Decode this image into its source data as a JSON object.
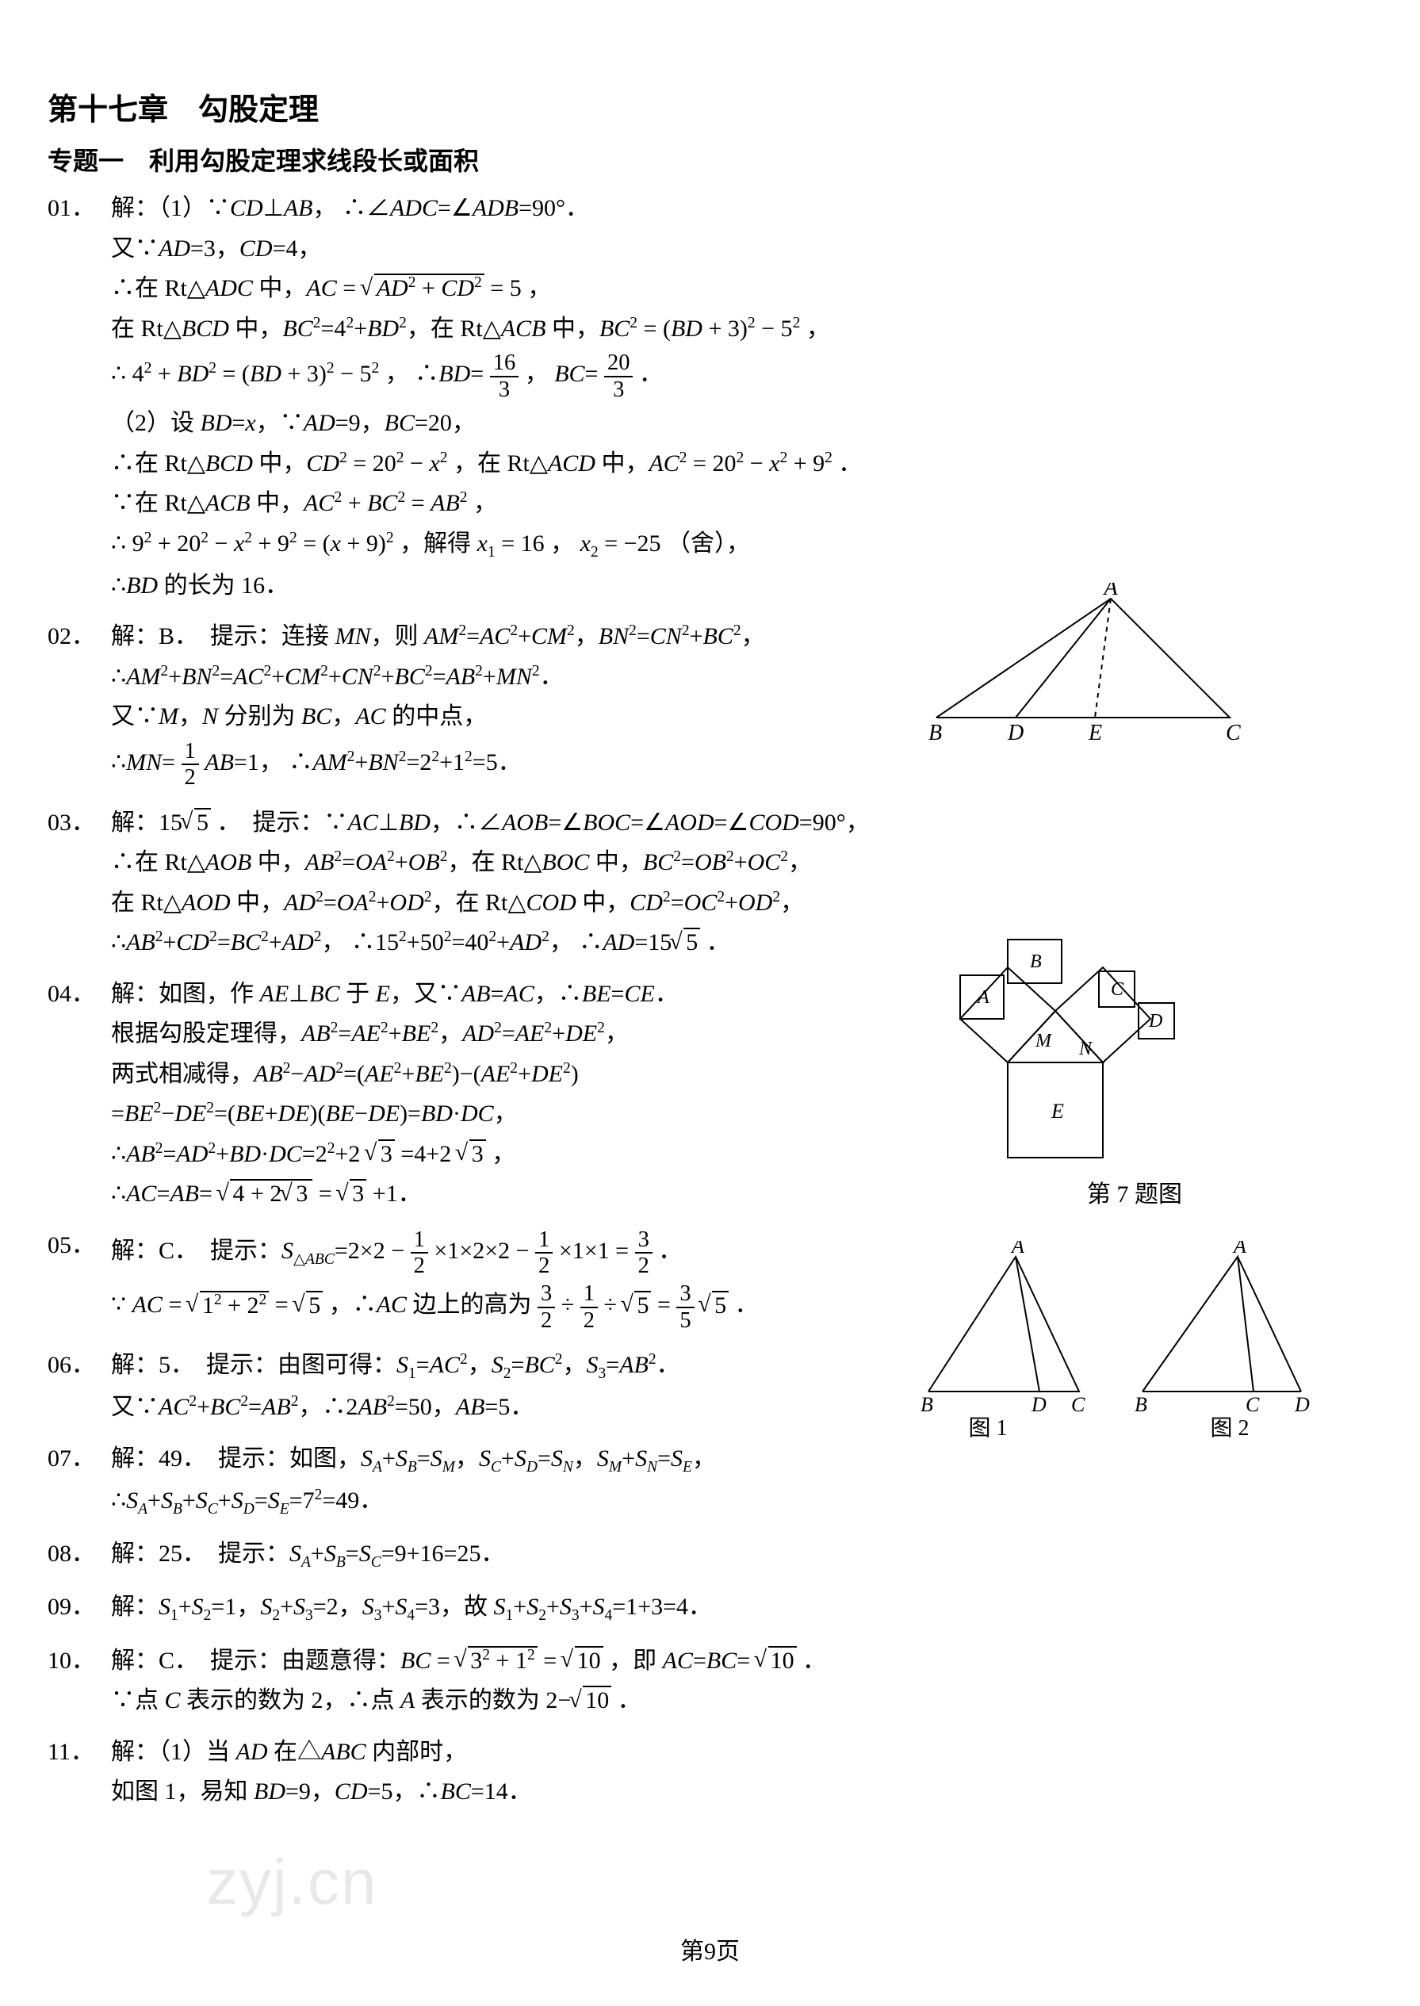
{
  "chapter": "第十七章　勾股定理",
  "topic": "专题一　利用勾股定理求线段长或面积",
  "questions": [
    {
      "num": "01．",
      "lines": [
        "解：（1）∵<span class='it'>CD</span>⊥<span class='it'>AB</span>， ∴∠<span class='it'>ADC</span>=∠<span class='it'>ADB</span>=90°．",
        "又∵<span class='it'>AD</span>=3，<span class='it'>CD</span>=4，",
        "∴在 Rt△<span class='it'>ADC</span> 中，<span class='it'>AC</span> = <span class='sqrt'><span class='rad'><span class='it'>AD</span><sup>2</sup> + <span class='it'>CD</span><sup>2</sup></span></span> = 5 ，",
        "在 Rt△<span class='it'>BCD</span> 中，<span class='it'>BC</span><sup>2</sup>=4<sup>2</sup>+<span class='it'>BD</span><sup>2</sup>，在 Rt△<span class='it'>ACB</span> 中，<span class='it'>BC</span><sup>2</sup> = (<span class='it'>BD</span> + 3)<sup>2</sup> − 5<sup>2</sup> ，",
        "∴ 4<sup>2</sup> + <span class='it'>BD</span><sup>2</sup> = (<span class='it'>BD</span> + 3)<sup>2</sup> − 5<sup>2</sup> ， ∴<span class='it'>BD</span>= <span class='frac'><span class='fn'>16</span><span class='fd'>3</span></span> ， <span class='it'>BC</span>= <span class='frac'><span class='fn'>20</span><span class='fd'>3</span></span> ．",
        "（2）设 <span class='it'>BD</span>=<span class='it'>x</span>，∵<span class='it'>AD</span>=9，<span class='it'>BC</span>=20，",
        "∴在 Rt△<span class='it'>BCD</span> 中，<span class='it'>CD</span><sup>2</sup> = 20<sup>2</sup> − <span class='it'>x</span><sup>2</sup> ，在 Rt△<span class='it'>ACD</span> 中，<span class='it'>AC</span><sup>2</sup> = 20<sup>2</sup> − <span class='it'>x</span><sup>2</sup> + 9<sup>2</sup> ．",
        "∵在 Rt△<span class='it'>ACB</span> 中，<span class='it'>AC</span><sup>2</sup> + <span class='it'>BC</span><sup>2</sup> = <span class='it'>AB</span><sup>2</sup> ，",
        "∴ 9<sup>2</sup> + 20<sup>2</sup> − <span class='it'>x</span><sup>2</sup> + 9<sup>2</sup> = (<span class='it'>x</span> + 9)<sup>2</sup> ，解得 <span class='it'>x</span><sub>1</sub> = 16 ， <span class='it'>x</span><sub>2</sub> = −25 （舍），",
        "∴<span class='it'>BD</span> 的长为 16．"
      ]
    },
    {
      "num": "02．",
      "lines": [
        "解：B．　提示：连接 <span class='it'>MN</span>，则 <span class='it'>AM</span><sup>2</sup>=<span class='it'>AC</span><sup>2</sup>+<span class='it'>CM</span><sup>2</sup>，<span class='it'>BN</span><sup>2</sup>=<span class='it'>CN</span><sup>2</sup>+<span class='it'>BC</span><sup>2</sup>，",
        "∴<span class='it'>AM</span><sup>2</sup>+<span class='it'>BN</span><sup>2</sup>=<span class='it'>AC</span><sup>2</sup>+<span class='it'>CM</span><sup>2</sup>+<span class='it'>CN</span><sup>2</sup>+<span class='it'>BC</span><sup>2</sup>=<span class='it'>AB</span><sup>2</sup>+<span class='it'>MN</span><sup>2</sup>．",
        "又∵<span class='it'>M</span>，<span class='it'>N</span> 分别为 <span class='it'>BC</span>，<span class='it'>AC</span> 的中点，",
        "∴<span class='it'>MN</span>= <span class='frac'><span class='fn'>1</span><span class='fd'>2</span></span> <span class='it'>AB</span>=1， ∴<span class='it'>AM</span><sup>2</sup>+<span class='it'>BN</span><sup>2</sup>=2<sup>2</sup>+1<sup>2</sup>=5．"
      ]
    },
    {
      "num": "03．",
      "lines": [
        "解：15<span class='sqrt'><span class='rad'>5</span></span> ．　提示：∵<span class='it'>AC</span>⊥<span class='it'>BD</span>，∴∠<span class='it'>AOB</span>=∠<span class='it'>BOC</span>=∠<span class='it'>AOD</span>=∠<span class='it'>COD</span>=90°，",
        "∴在 Rt△<span class='it'>AOB</span> 中，<span class='it'>AB</span><sup>2</sup>=<span class='it'>OA</span><sup>2</sup>+<span class='it'>OB</span><sup>2</sup>，在 Rt△<span class='it'>BOC</span> 中，<span class='it'>BC</span><sup>2</sup>=<span class='it'>OB</span><sup>2</sup>+<span class='it'>OC</span><sup>2</sup>，",
        "在 Rt△<span class='it'>AOD</span> 中，<span class='it'>AD</span><sup>2</sup>=<span class='it'>OA</span><sup>2</sup>+<span class='it'>OD</span><sup>2</sup>，在 Rt△<span class='it'>COD</span> 中，<span class='it'>CD</span><sup>2</sup>=<span class='it'>OC</span><sup>2</sup>+<span class='it'>OD</span><sup>2</sup>，",
        "∴<span class='it'>AB</span><sup>2</sup>+<span class='it'>CD</span><sup>2</sup>=<span class='it'>BC</span><sup>2</sup>+<span class='it'>AD</span><sup>2</sup>， ∴15<sup>2</sup>+50<sup>2</sup>=40<sup>2</sup>+<span class='it'>AD</span><sup>2</sup>， ∴<span class='it'>AD</span>=15<span class='sqrt'><span class='rad'>5</span></span> ．"
      ]
    },
    {
      "num": "04．",
      "lines": [
        "解：如图，作 <span class='it'>AE</span>⊥<span class='it'>BC</span> 于 <span class='it'>E</span>，又∵<span class='it'>AB</span>=<span class='it'>AC</span>，∴<span class='it'>BE</span>=<span class='it'>CE</span>．",
        "根据勾股定理得，<span class='it'>AB</span><sup>2</sup>=<span class='it'>AE</span><sup>2</sup>+<span class='it'>BE</span><sup>2</sup>，<span class='it'>AD</span><sup>2</sup>=<span class='it'>AE</span><sup>2</sup>+<span class='it'>DE</span><sup>2</sup>，",
        "两式相减得，<span class='it'>AB</span><sup>2</sup>−<span class='it'>AD</span><sup>2</sup>=(<span class='it'>AE</span><sup>2</sup>+<span class='it'>BE</span><sup>2</sup>)−(<span class='it'>AE</span><sup>2</sup>+<span class='it'>DE</span><sup>2</sup>)",
        "=<span class='it'>BE</span><sup>2</sup>−<span class='it'>DE</span><sup>2</sup>=(<span class='it'>BE</span>+<span class='it'>DE</span>)(<span class='it'>BE</span>−<span class='it'>DE</span>)=<span class='it'>BD</span>·<span class='it'>DC</span>，",
        "∴<span class='it'>AB</span><sup>2</sup>=<span class='it'>AD</span><sup>2</sup>+<span class='it'>BD</span>·<span class='it'>DC</span>=2<sup>2</sup>+2 <span class='sqrt'><span class='rad'>3</span></span> =4+2 <span class='sqrt'><span class='rad'>3</span></span> ，",
        "∴<span class='it'>AC</span>=<span class='it'>AB</span>= <span class='sqrt'><span class='rad'>4 + 2<span class='sqrt'><span class='rad'>3</span></span></span></span> = <span class='sqrt'><span class='rad'>3</span></span> +1．"
      ]
    },
    {
      "num": "05．",
      "lines": [
        "解：C．　提示：<span class='it'>S</span><sub>△<span class='it'>ABC</span></sub>=2×2 − <span class='frac'><span class='fn'>1</span><span class='fd'>2</span></span> ×1×2×2 − <span class='frac'><span class='fn'>1</span><span class='fd'>2</span></span> ×1×1 = <span class='frac'><span class='fn'>3</span><span class='fd'>2</span></span> ．",
        "∵ <span class='it'>AC</span> = <span class='sqrt'><span class='rad'>1<sup>2</sup> + 2<sup>2</sup></span></span> = <span class='sqrt'><span class='rad'>5</span></span> ，∴<span class='it'>AC</span> 边上的高为 <span class='frac'><span class='fn'>3</span><span class='fd'>2</span></span> ÷ <span class='frac'><span class='fn'>1</span><span class='fd'>2</span></span> ÷ <span class='sqrt'><span class='rad'>5</span></span> = <span class='frac'><span class='fn'>3</span><span class='fd'>5</span></span> <span class='sqrt'><span class='rad'>5</span></span> ．"
      ]
    },
    {
      "num": "06．",
      "lines": [
        "解：5．　提示：由图可得：<span class='it'>S</span><sub>1</sub>=<span class='it'>AC</span><sup>2</sup>，<span class='it'>S</span><sub>2</sub>=<span class='it'>BC</span><sup>2</sup>，<span class='it'>S</span><sub>3</sub>=<span class='it'>AB</span><sup>2</sup>．",
        "又∵<span class='it'>AC</span><sup>2</sup>+<span class='it'>BC</span><sup>2</sup>=<span class='it'>AB</span><sup>2</sup>，∴2<span class='it'>AB</span><sup>2</sup>=50，<span class='it'>AB</span>=5．"
      ]
    },
    {
      "num": "07．",
      "lines": [
        "解：49．　提示：如图，<span class='it'>S<sub>A</sub></span>+<span class='it'>S<sub>B</sub></span>=<span class='it'>S<sub>M</sub></span>，<span class='it'>S<sub>C</sub></span>+<span class='it'>S<sub>D</sub></span>=<span class='it'>S<sub>N</sub></span>，<span class='it'>S<sub>M</sub></span>+<span class='it'>S<sub>N</sub></span>=<span class='it'>S<sub>E</sub></span>，",
        "∴<span class='it'>S<sub>A</sub></span>+<span class='it'>S<sub>B</sub></span>+<span class='it'>S<sub>C</sub></span>+<span class='it'>S<sub>D</sub></span>=<span class='it'>S<sub>E</sub></span>=7<sup>2</sup>=49．"
      ]
    },
    {
      "num": "08．",
      "lines": [
        "解：25．　提示：<span class='it'>S<sub>A</sub></span>+<span class='it'>S<sub>B</sub></span>=<span class='it'>S<sub>C</sub></span>=9+16=25．"
      ]
    },
    {
      "num": "09．",
      "lines": [
        "解：<span class='it'>S</span><sub>1</sub>+<span class='it'>S</span><sub>2</sub>=1，<span class='it'>S</span><sub>2</sub>+<span class='it'>S</span><sub>3</sub>=2，<span class='it'>S</span><sub>3</sub>+<span class='it'>S</span><sub>4</sub>=3，故 <span class='it'>S</span><sub>1</sub>+<span class='it'>S</span><sub>2</sub>+<span class='it'>S</span><sub>3</sub>+<span class='it'>S</span><sub>4</sub>=1+3=4．"
      ]
    },
    {
      "num": "10．",
      "lines": [
        "解：C．　提示：由题意得：<span class='it'>BC</span> = <span class='sqrt'><span class='rad'>3<sup>2</sup> + 1<sup>2</sup></span></span> = <span class='sqrt'><span class='rad'>10</span></span> ，即 <span class='it'>AC</span>=<span class='it'>BC</span>= <span class='sqrt'><span class='rad'>10</span></span> ．",
        "∵点 <span class='it'>C</span> 表示的数为 2，∴点 <span class='it'>A</span> 表示的数为 2−<span class='sqrt'><span class='rad'>10</span></span> ．"
      ]
    },
    {
      "num": "11．",
      "lines": [
        "解：（1）当 <span class='it'>AD</span> 在△<span class='it'>ABC</span> 内部时，",
        "如图 1，易知 <span class='it'>BD</span>=9，<span class='it'>CD</span>=5，∴<span class='it'>BC</span>=14．"
      ]
    }
  ],
  "fig4": {
    "A": "A",
    "B": "B",
    "C": "C",
    "D": "D",
    "E": "E"
  },
  "fig7": {
    "A": "A",
    "B": "B",
    "C": "C",
    "D": "D",
    "E": "E",
    "M": "M",
    "N": "N",
    "caption": "第 7 题图"
  },
  "fig11": {
    "A": "A",
    "B": "B",
    "C": "C",
    "D": "D",
    "cap1": "图 1",
    "cap2": "图 2"
  },
  "watermark": "zyj.cn",
  "page_number": "第9页",
  "colors": {
    "text": "#000000",
    "bg": "#ffffff",
    "watermark": "rgba(0,0,0,0.09)"
  },
  "fonts": {
    "body_pt": 30,
    "chapter_pt": 38,
    "topic_pt": 32
  }
}
